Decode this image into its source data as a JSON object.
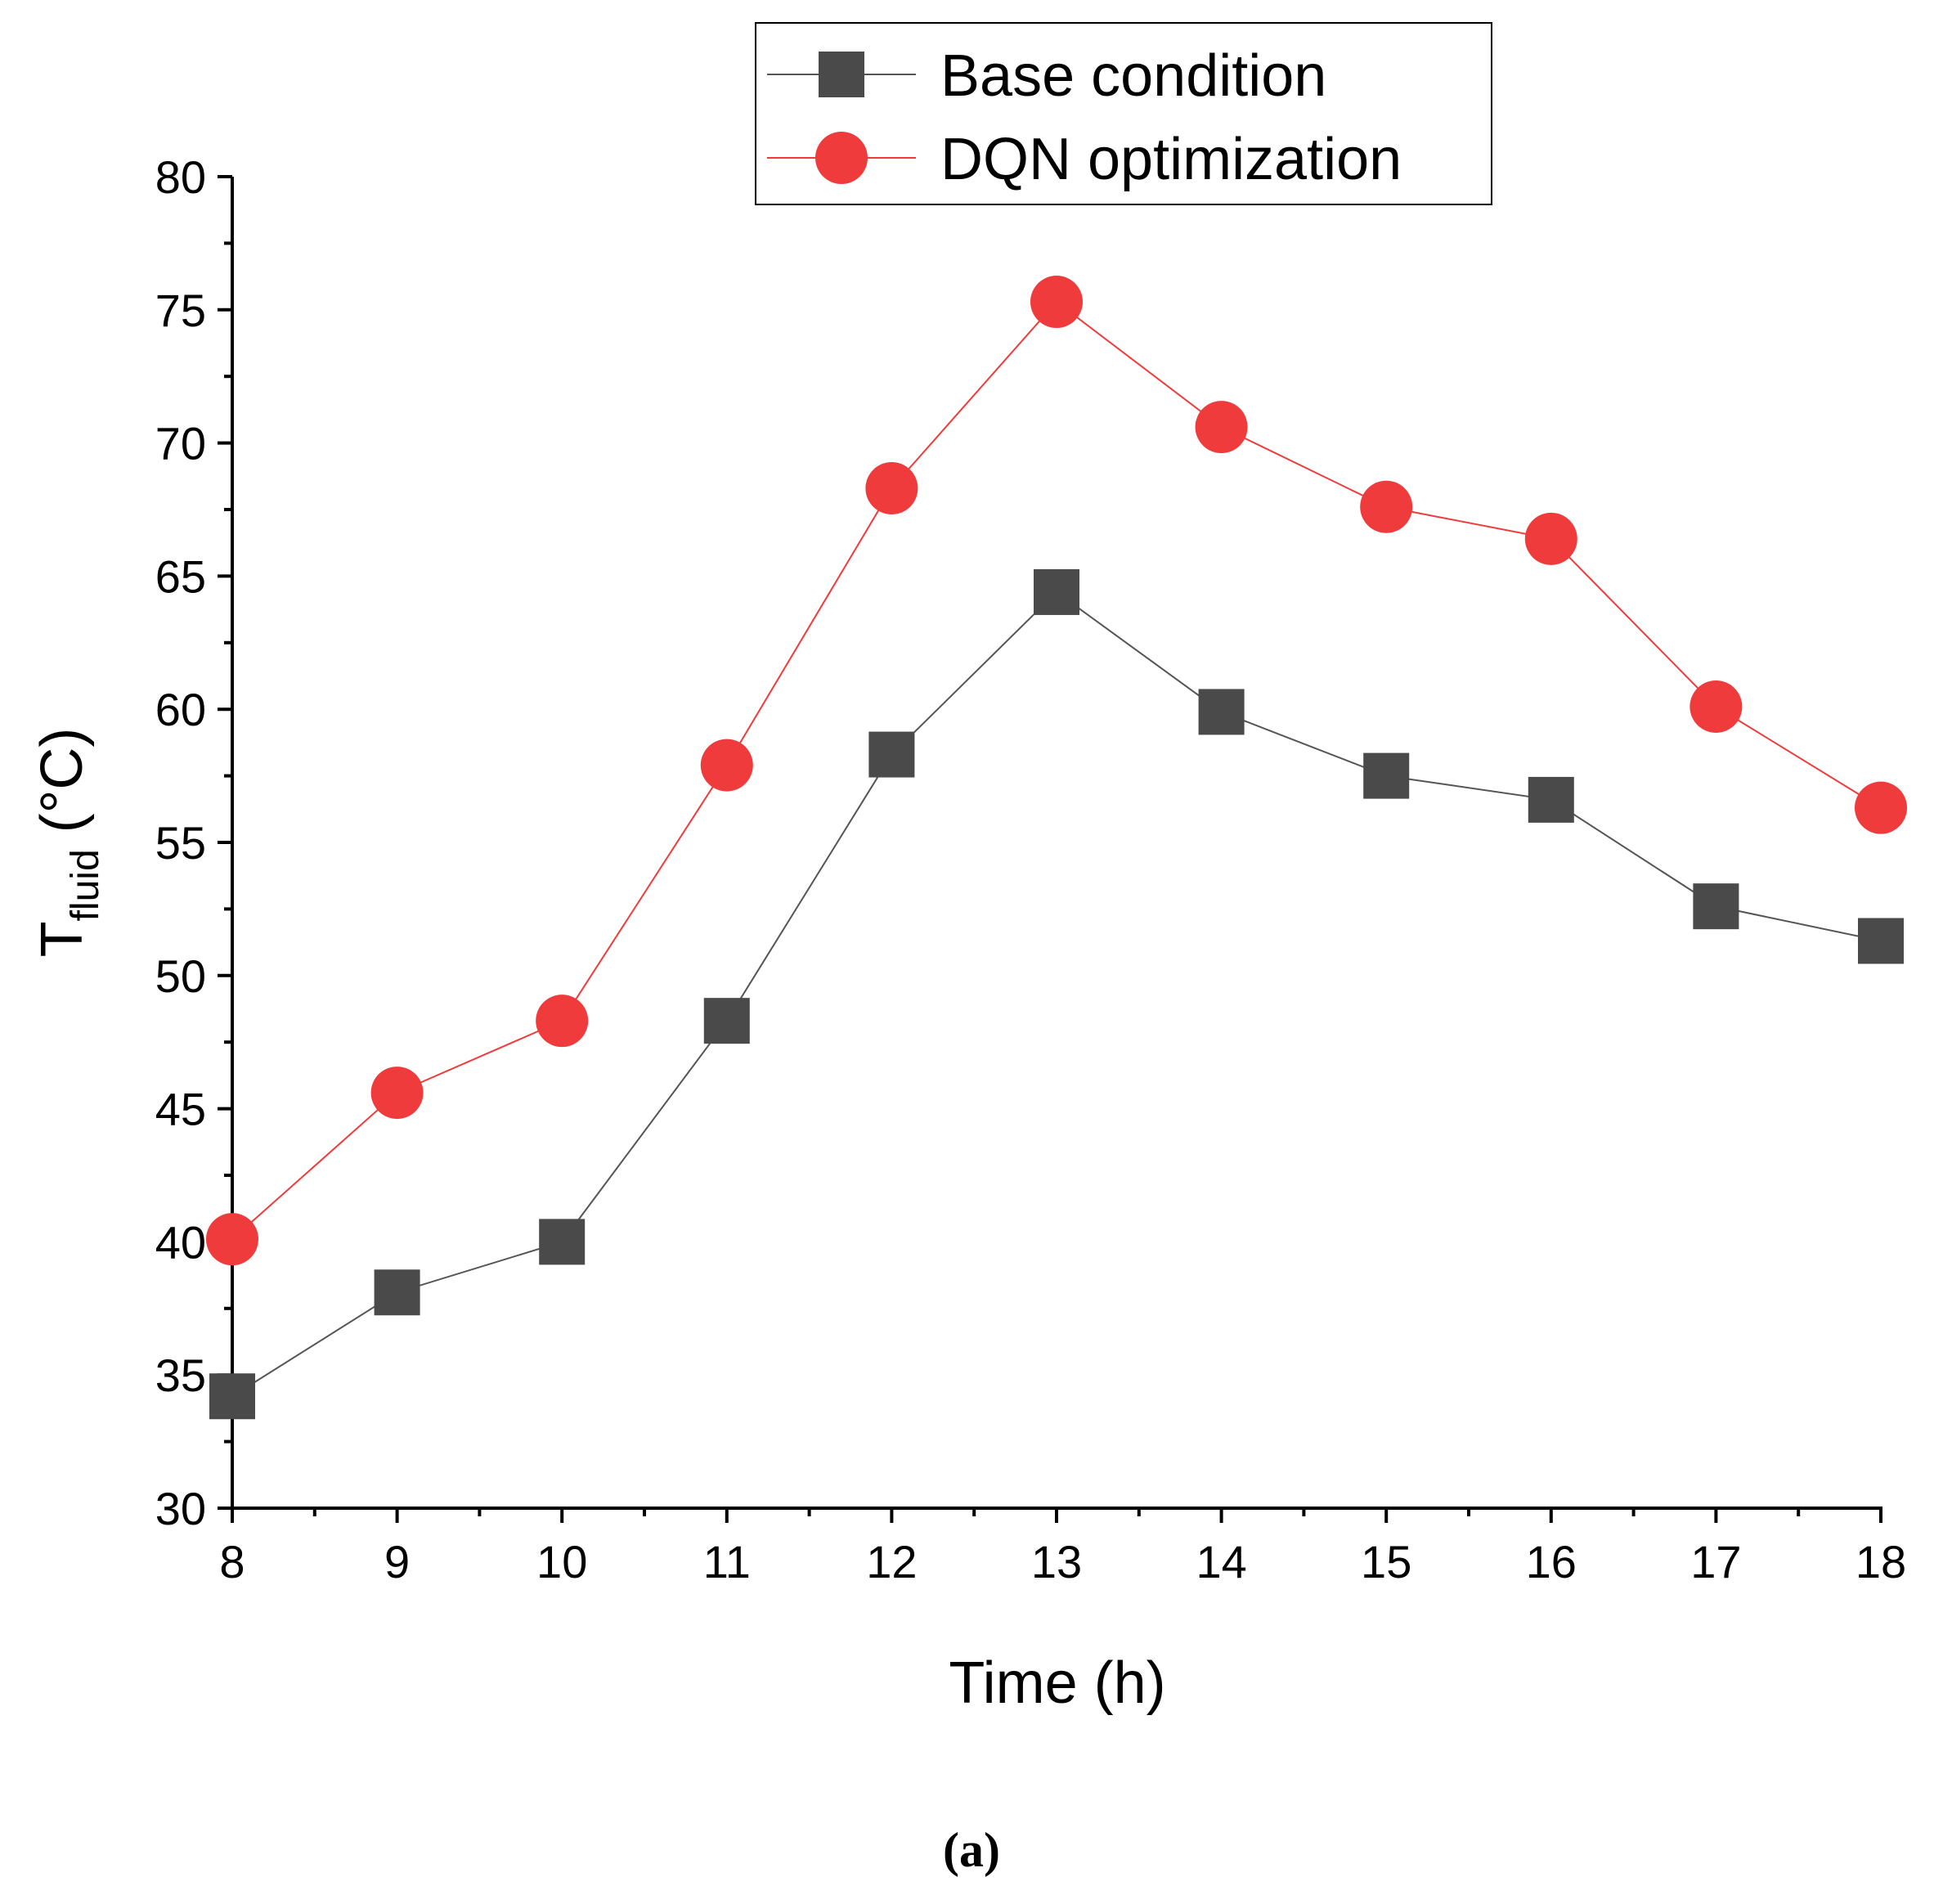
{
  "chart_data": {
    "type": "line",
    "title": "",
    "caption": {
      "open": "(",
      "letter": "a",
      "close": ")"
    },
    "xlabel": "Time (h)",
    "ylabel": {
      "main": "T",
      "sub": "fluid",
      "unit": " (°C)"
    },
    "xlim": [
      8,
      18
    ],
    "ylim": [
      30,
      80
    ],
    "x": [
      8,
      9,
      10,
      11,
      12,
      13,
      14,
      15,
      16,
      17,
      18
    ],
    "xticks": [
      "8",
      "9",
      "10",
      "11",
      "12",
      "13",
      "14",
      "15",
      "16",
      "17",
      "18"
    ],
    "yticks": [
      "30",
      "35",
      "40",
      "45",
      "50",
      "55",
      "60",
      "65",
      "70",
      "75",
      "80"
    ],
    "grid": false,
    "legend_position": "top-center",
    "series": [
      {
        "name": "Base condition",
        "marker": "square",
        "color": "#4a4a4a",
        "line_color": "#555555",
        "values": [
          34.2,
          38.1,
          40.0,
          48.3,
          58.3,
          64.4,
          59.9,
          57.5,
          56.6,
          52.6,
          51.3
        ]
      },
      {
        "name": "DQN optimization",
        "marker": "circle",
        "color": "#ef3b3b",
        "line_color": "#ef3b3b",
        "values": [
          40.1,
          45.6,
          48.3,
          57.9,
          68.3,
          75.3,
          70.6,
          67.6,
          66.4,
          60.1,
          56.3
        ]
      }
    ]
  }
}
